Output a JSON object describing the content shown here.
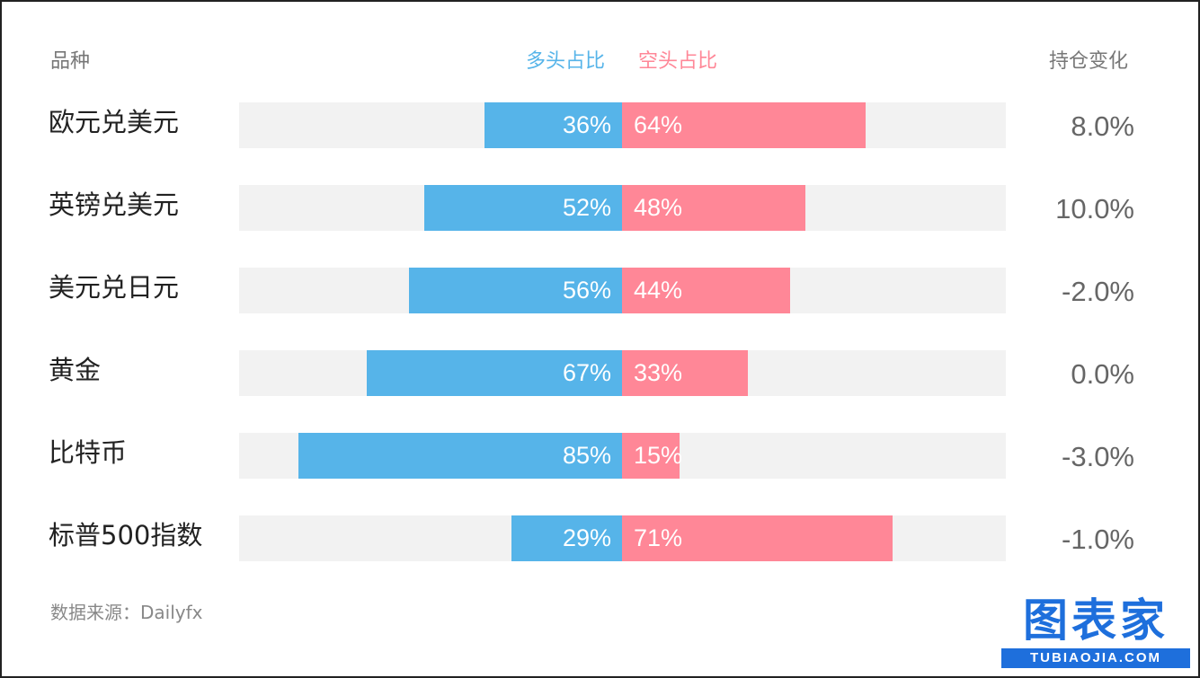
{
  "header": {
    "category_label": "品种",
    "long_label": "多头占比",
    "short_label": "空头占比",
    "change_label": "持仓变化"
  },
  "colors": {
    "long": "#56b4e9",
    "short": "#ff8797",
    "track": "#f2f2f2"
  },
  "chart_data": {
    "type": "bar",
    "orientation": "horizontal-diverging",
    "categories": [
      "欧元兑美元",
      "英镑兑美元",
      "美元兑日元",
      "黄金",
      "比特币",
      "标普500指数"
    ],
    "series": [
      {
        "name": "多头占比",
        "values": [
          36,
          52,
          56,
          67,
          85,
          29
        ],
        "labels": [
          "36%",
          "52%",
          "56%",
          "67%",
          "85%",
          "29%"
        ]
      },
      {
        "name": "空头占比",
        "values": [
          64,
          48,
          44,
          33,
          15,
          71
        ],
        "labels": [
          "64%",
          "48%",
          "44%",
          "33%",
          "15%",
          "71%"
        ]
      }
    ],
    "position_change": [
      "8.0%",
      "10.0%",
      "-2.0%",
      "0.0%",
      "-3.0%",
      "-1.0%"
    ],
    "column_title": "持仓变化",
    "xlim": [
      0,
      100
    ]
  },
  "footer": {
    "source": "数据来源：Dailyfx"
  },
  "logo": {
    "main": "图表家",
    "sub": "TUBIAOJIA.COM"
  }
}
